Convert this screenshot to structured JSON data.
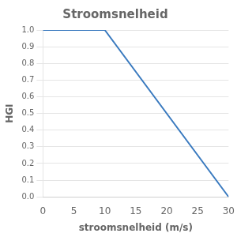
{
  "chart_data": {
    "type": "line",
    "title": "Stroomsnelheid",
    "xlabel": "stroomsnelheid (m/s)",
    "ylabel": "HGI",
    "x": [
      0,
      10,
      30
    ],
    "values": [
      1.0,
      1.0,
      0.0
    ],
    "color": "#3a7abf",
    "xlim": [
      0,
      30
    ],
    "ylim": [
      0.0,
      1.0
    ],
    "xticks": [
      0,
      5,
      10,
      15,
      20,
      25,
      30
    ],
    "yticks": [
      {
        "value": 0,
        "label": "0.0"
      },
      0.1,
      0.2,
      0.3,
      0.4,
      0.5,
      0.6,
      0.7,
      0.8,
      0.9,
      {
        "value": 1,
        "label": "1.0"
      }
    ],
    "grid": "y"
  }
}
